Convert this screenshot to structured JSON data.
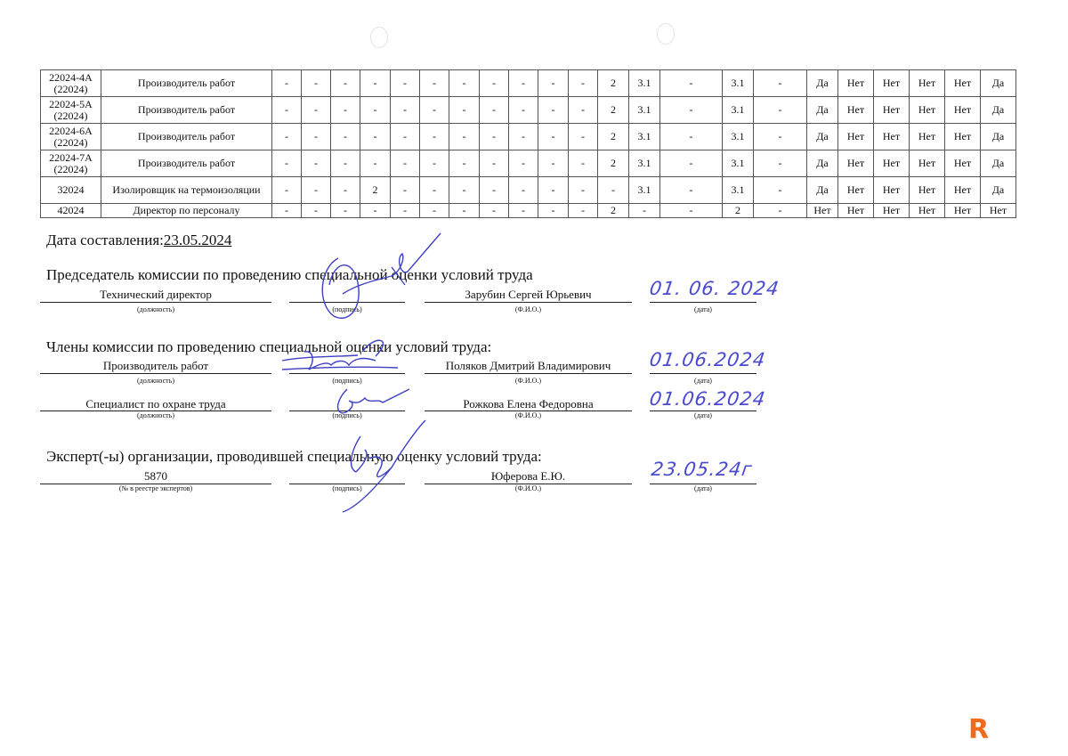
{
  "table": {
    "rows": [
      {
        "code": "22024-4А (22024)",
        "name": "Производитель работ",
        "values": [
          "-",
          "-",
          "-",
          "-",
          "-",
          "-",
          "-",
          "-",
          "-",
          "-",
          "-",
          "2",
          "3.1",
          "-",
          "3.1",
          "-",
          "Да",
          "Нет",
          "Нет",
          "Нет",
          "Нет",
          "Да"
        ]
      },
      {
        "code": "22024-5А (22024)",
        "name": "Производитель работ",
        "values": [
          "-",
          "-",
          "-",
          "-",
          "-",
          "-",
          "-",
          "-",
          "-",
          "-",
          "-",
          "2",
          "3.1",
          "-",
          "3.1",
          "-",
          "Да",
          "Нет",
          "Нет",
          "Нет",
          "Нет",
          "Да"
        ]
      },
      {
        "code": "22024-6А (22024)",
        "name": "Производитель работ",
        "values": [
          "-",
          "-",
          "-",
          "-",
          "-",
          "-",
          "-",
          "-",
          "-",
          "-",
          "-",
          "2",
          "3.1",
          "-",
          "3.1",
          "-",
          "Да",
          "Нет",
          "Нет",
          "Нет",
          "Нет",
          "Да"
        ]
      },
      {
        "code": "22024-7А (22024)",
        "name": "Производитель работ",
        "values": [
          "-",
          "-",
          "-",
          "-",
          "-",
          "-",
          "-",
          "-",
          "-",
          "-",
          "-",
          "2",
          "3.1",
          "-",
          "3.1",
          "-",
          "Да",
          "Нет",
          "Нет",
          "Нет",
          "Нет",
          "Да"
        ]
      },
      {
        "code": "32024",
        "name": "Изолировщик на термоизоляции",
        "values": [
          "-",
          "-",
          "-",
          "2",
          "-",
          "-",
          "-",
          "-",
          "-",
          "-",
          "-",
          "-",
          "3.1",
          "-",
          "3.1",
          "-",
          "Да",
          "Нет",
          "Нет",
          "Нет",
          "Нет",
          "Да"
        ]
      },
      {
        "code": "42024",
        "name": "Директор по персоналу",
        "values": [
          "-",
          "-",
          "-",
          "-",
          "-",
          "-",
          "-",
          "-",
          "-",
          "-",
          "-",
          "2",
          "-",
          "-",
          "2",
          "-",
          "Нет",
          "Нет",
          "Нет",
          "Нет",
          "Нет",
          "Нет"
        ]
      }
    ]
  },
  "compiled": {
    "label": "Дата составления:",
    "date": "23.05.2024"
  },
  "chairman": {
    "heading": "Председатель комиссии по проведению специальной оценки условий труда",
    "position": "Технический директор",
    "name": "Зарубин Сергей Юрьевич",
    "date": "01. 06. 2024"
  },
  "members": {
    "heading": "Члены комиссии по проведению специальной оценки условий труда:",
    "items": [
      {
        "position": "Производитель работ",
        "name": "Поляков Дмитрий Владимирович",
        "date": "01.06.2024"
      },
      {
        "position": "Специалист по охране труда",
        "name": "Рожкова Елена Федоровна",
        "date": "01.06.2024"
      }
    ]
  },
  "expert": {
    "heading": "Эксперт(-ы) организации, проводившей специальную оценку условий труда:",
    "registry": "5870",
    "name": "Юферова Е.Ю.",
    "date": "23.05.24г"
  },
  "captions": {
    "position": "(должность)",
    "signature": "(подпись)",
    "fio": "(Ф.И.О.)",
    "date": "(дата)",
    "registry": "(№ в реестре экспертов)"
  },
  "logo": {
    "letter": "R",
    "color": "#f26b1d"
  },
  "ink_color": "#3d3fc4"
}
